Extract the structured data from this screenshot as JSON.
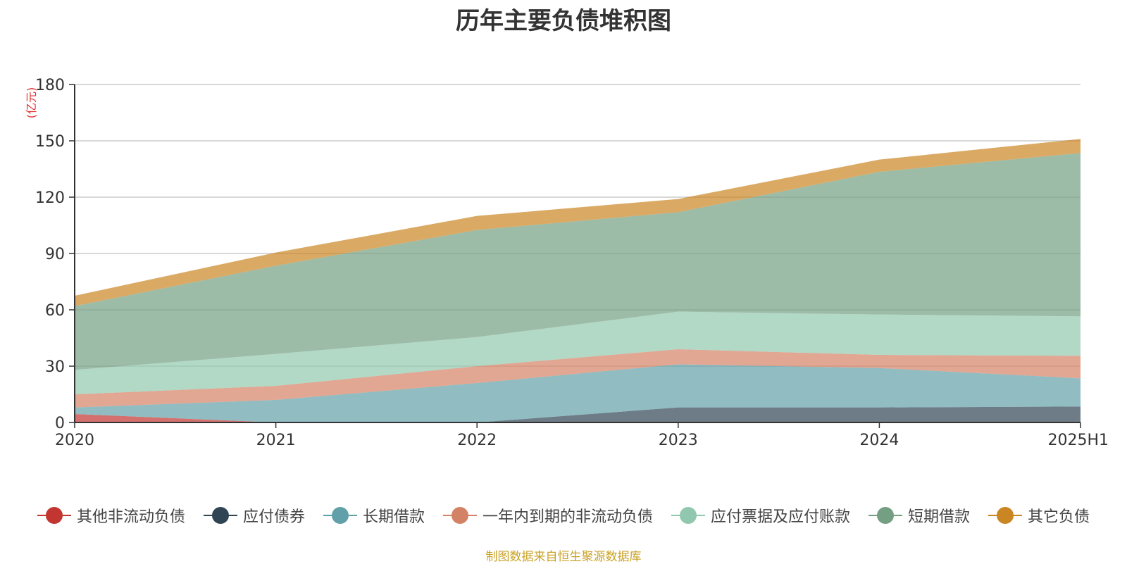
{
  "page": {
    "title": "历年主要负债堆积图",
    "source": "制图数据来自恒生聚源数据库"
  },
  "chart_data": {
    "type": "area",
    "stacked": true,
    "title": "历年主要负债堆积图",
    "ylabel": "(亿元)",
    "xlabel": "",
    "categories": [
      "2020",
      "2021",
      "2022",
      "2023",
      "2024",
      "2025H1"
    ],
    "ylim": [
      0,
      180
    ],
    "yticks": [
      0,
      30,
      60,
      90,
      120,
      150,
      180
    ],
    "grid": true,
    "legend_position": "bottom",
    "series": [
      {
        "name": "其他非流动负债",
        "color": "#c23531",
        "values": [
          4.5,
          0,
          0,
          0,
          0,
          0
        ]
      },
      {
        "name": "应付债券",
        "color": "#2f4554",
        "values": [
          0,
          0,
          0,
          8,
          8,
          8.5
        ]
      },
      {
        "name": "长期借款",
        "color": "#61a0a8",
        "values": [
          3.5,
          12,
          21,
          23,
          21,
          15
        ]
      },
      {
        "name": "一年内到期的非流动负债",
        "color": "#d48265",
        "values": [
          7,
          7.5,
          9,
          8,
          7,
          12
        ]
      },
      {
        "name": "应付票据及应付账款",
        "color": "#91c7ae",
        "values": [
          13,
          17,
          15.5,
          20,
          21.5,
          21
        ]
      },
      {
        "name": "短期借款",
        "color": "#749f83",
        "values": [
          34,
          47,
          57,
          53,
          76,
          87
        ]
      },
      {
        "name": "其它负债",
        "color": "#ca8622",
        "values": [
          5.5,
          7,
          7.5,
          7,
          6.5,
          7.5
        ]
      }
    ]
  }
}
